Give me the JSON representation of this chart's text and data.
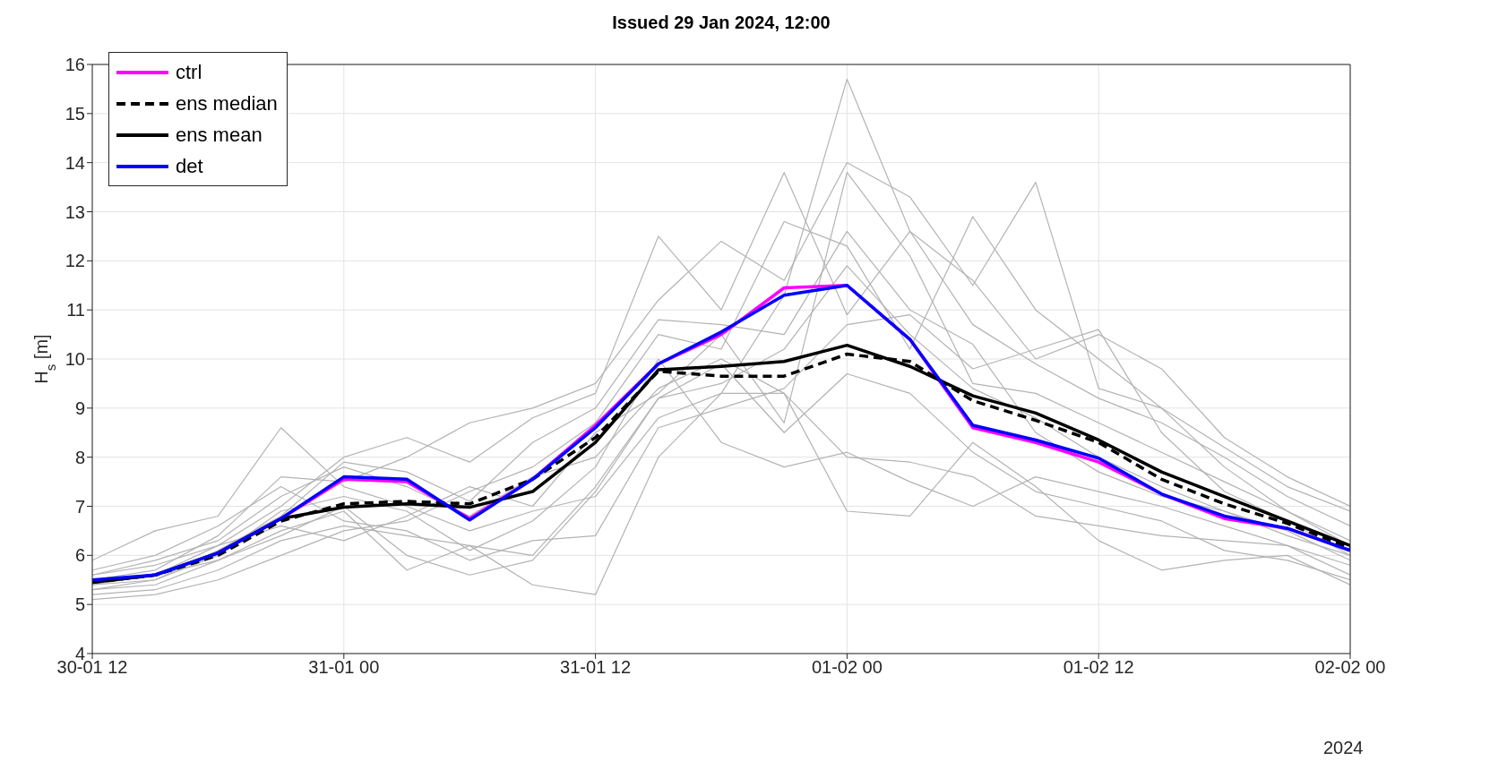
{
  "chart_data": {
    "type": "line",
    "title": "Issued 29 Jan 2024, 12:00",
    "ylabel": "H$_{s}$ [m]",
    "x": [
      "2024-01-30T12:00",
      "2024-01-30T15:00",
      "2024-01-30T18:00",
      "2024-01-30T21:00",
      "2024-01-31T00:00",
      "2024-01-31T03:00",
      "2024-01-31T06:00",
      "2024-01-31T09:00",
      "2024-01-31T12:00",
      "2024-01-31T15:00",
      "2024-01-31T18:00",
      "2024-01-31T21:00",
      "2024-02-01T00:00",
      "2024-02-01T03:00",
      "2024-02-01T06:00",
      "2024-02-01T09:00",
      "2024-02-01T12:00",
      "2024-02-01T15:00",
      "2024-02-01T18:00",
      "2024-02-01T21:00",
      "2024-02-02T00:00"
    ],
    "xlim": [
      "2024-01-30T12:00",
      "2024-02-02T00:00"
    ],
    "xticks": [
      {
        "value": "2024-01-30T12:00",
        "label": "30-01 12"
      },
      {
        "value": "2024-01-31T00:00",
        "label": "31-01 00"
      },
      {
        "value": "2024-01-31T12:00",
        "label": "31-01 12"
      },
      {
        "value": "2024-02-01T00:00",
        "label": "01-02 00"
      },
      {
        "value": "2024-02-01T12:00",
        "label": "01-02 12"
      },
      {
        "value": "2024-02-02T00:00",
        "label": "02-02 00"
      }
    ],
    "ylim": [
      4,
      16
    ],
    "yticks": [
      4,
      5,
      6,
      7,
      8,
      9,
      10,
      11,
      12,
      13,
      14,
      15,
      16
    ],
    "grid": true,
    "legend": "top left",
    "annotations": [
      "2024"
    ],
    "series": [
      {
        "color": "#b3b3b3",
        "values": [
          5.2,
          5.3,
          5.7,
          6.3,
          6.6,
          6.4,
          6.2,
          6.0,
          7.4,
          9.2,
          9.5,
          10.2,
          11.9,
          10.5,
          9.4,
          8.8,
          8.0,
          7.4,
          6.9,
          6.5,
          5.9
        ]
      },
      {
        "color": "#b3b3b3",
        "values": [
          5.9,
          6.5,
          6.8,
          8.6,
          7.4,
          7.0,
          6.5,
          6.9,
          7.2,
          8.8,
          9.3,
          11.3,
          15.7,
          12.6,
          10.7,
          9.9,
          9.2,
          8.7,
          8.0,
          7.2,
          6.6
        ]
      },
      {
        "color": "#b3b3b3",
        "values": [
          5.6,
          5.8,
          6.2,
          7.0,
          8.0,
          8.4,
          7.9,
          8.8,
          9.3,
          12.5,
          11.0,
          13.8,
          10.9,
          12.6,
          11.6,
          10.0,
          10.5,
          9.8,
          8.4,
          7.6,
          7.0
        ]
      },
      {
        "color": "#b3b3b3",
        "values": [
          5.3,
          5.4,
          5.9,
          6.5,
          6.9,
          5.7,
          6.2,
          5.4,
          5.2,
          8.0,
          9.3,
          9.3,
          6.9,
          6.8,
          8.3,
          7.4,
          6.3,
          5.7,
          5.9,
          6.0,
          5.4
        ]
      },
      {
        "color": "#b3b3b3",
        "values": [
          5.5,
          5.7,
          6.4,
          7.6,
          7.5,
          8.0,
          8.7,
          9.0,
          9.5,
          11.2,
          12.4,
          11.6,
          14.0,
          13.3,
          11.5,
          13.6,
          9.4,
          9.0,
          7.8,
          6.9,
          6.2
        ]
      },
      {
        "color": "#b3b3b3",
        "values": [
          5.4,
          5.5,
          6.0,
          6.9,
          7.2,
          6.9,
          6.1,
          6.7,
          7.8,
          10.0,
          8.3,
          7.8,
          8.1,
          7.5,
          7.0,
          7.6,
          7.3,
          7.0,
          6.6,
          6.2,
          5.8
        ]
      },
      {
        "color": "#b3b3b3",
        "values": [
          5.1,
          5.2,
          5.5,
          6.0,
          6.5,
          6.7,
          7.3,
          7.8,
          8.7,
          10.5,
          10.2,
          12.8,
          12.3,
          10.2,
          12.9,
          11.0,
          10.0,
          9.0,
          8.2,
          7.4,
          6.9
        ]
      },
      {
        "color": "#b3b3b3",
        "values": [
          5.6,
          5.9,
          6.3,
          7.2,
          7.8,
          7.4,
          6.8,
          7.6,
          8.0,
          9.4,
          10.0,
          9.3,
          8.0,
          7.9,
          7.6,
          6.8,
          6.6,
          6.4,
          6.3,
          6.2,
          5.6
        ]
      },
      {
        "color": "#b3b3b3",
        "values": [
          5.4,
          5.6,
          6.2,
          6.6,
          6.3,
          6.8,
          7.4,
          7.0,
          8.5,
          9.3,
          10.5,
          8.7,
          13.8,
          12.1,
          9.5,
          9.3,
          8.7,
          8.1,
          7.5,
          6.9,
          6.3
        ]
      },
      {
        "color": "#b3b3b3",
        "values": [
          5.7,
          6.0,
          6.6,
          7.4,
          6.7,
          6.5,
          5.9,
          6.3,
          6.4,
          8.6,
          9.0,
          9.4,
          10.7,
          10.9,
          9.8,
          10.2,
          10.6,
          8.5,
          7.3,
          6.7,
          6.0
        ]
      },
      {
        "color": "#b3b3b3",
        "values": [
          5.3,
          5.5,
          6.1,
          6.8,
          7.9,
          7.7,
          7.1,
          8.3,
          9.0,
          10.8,
          10.7,
          10.5,
          12.6,
          11.0,
          10.3,
          8.5,
          7.7,
          7.2,
          6.9,
          6.4,
          6.0
        ]
      },
      {
        "color": "#b3b3b3",
        "values": [
          5.5,
          5.6,
          5.9,
          6.4,
          7.0,
          6.0,
          5.6,
          5.9,
          7.3,
          9.2,
          9.9,
          8.5,
          9.7,
          9.3,
          8.1,
          7.3,
          7.0,
          6.7,
          6.1,
          5.9,
          5.5
        ]
      },
      {
        "name": "ctrl",
        "color": "#ff00ff",
        "values": [
          null,
          null,
          6.05,
          6.75,
          7.55,
          7.5,
          6.75,
          7.55,
          8.65,
          9.9,
          10.5,
          11.45,
          11.5,
          10.4,
          8.6,
          8.3,
          7.9,
          7.25,
          6.75,
          6.55,
          6.1
        ]
      },
      {
        "name": "ens median",
        "color": "#000000",
        "line_style": "dashed",
        "values": [
          5.45,
          5.6,
          6.0,
          6.7,
          7.05,
          7.1,
          7.05,
          7.55,
          8.4,
          9.75,
          9.65,
          9.65,
          10.1,
          9.95,
          9.15,
          8.75,
          8.3,
          7.55,
          7.05,
          6.65,
          6.15
        ]
      },
      {
        "name": "ens mean",
        "color": "#000000",
        "values": [
          5.45,
          5.6,
          6.05,
          6.75,
          6.98,
          7.05,
          6.98,
          7.3,
          8.3,
          9.78,
          9.85,
          9.95,
          10.28,
          9.85,
          9.25,
          8.9,
          8.35,
          7.7,
          7.2,
          6.7,
          6.2
        ]
      },
      {
        "name": "det",
        "color": "#0000ff",
        "values": [
          5.5,
          5.6,
          6.05,
          6.75,
          7.6,
          7.55,
          6.72,
          7.55,
          8.6,
          9.9,
          10.55,
          11.3,
          11.5,
          10.4,
          8.65,
          8.35,
          7.98,
          7.25,
          6.8,
          6.55,
          6.1
        ]
      }
    ]
  }
}
